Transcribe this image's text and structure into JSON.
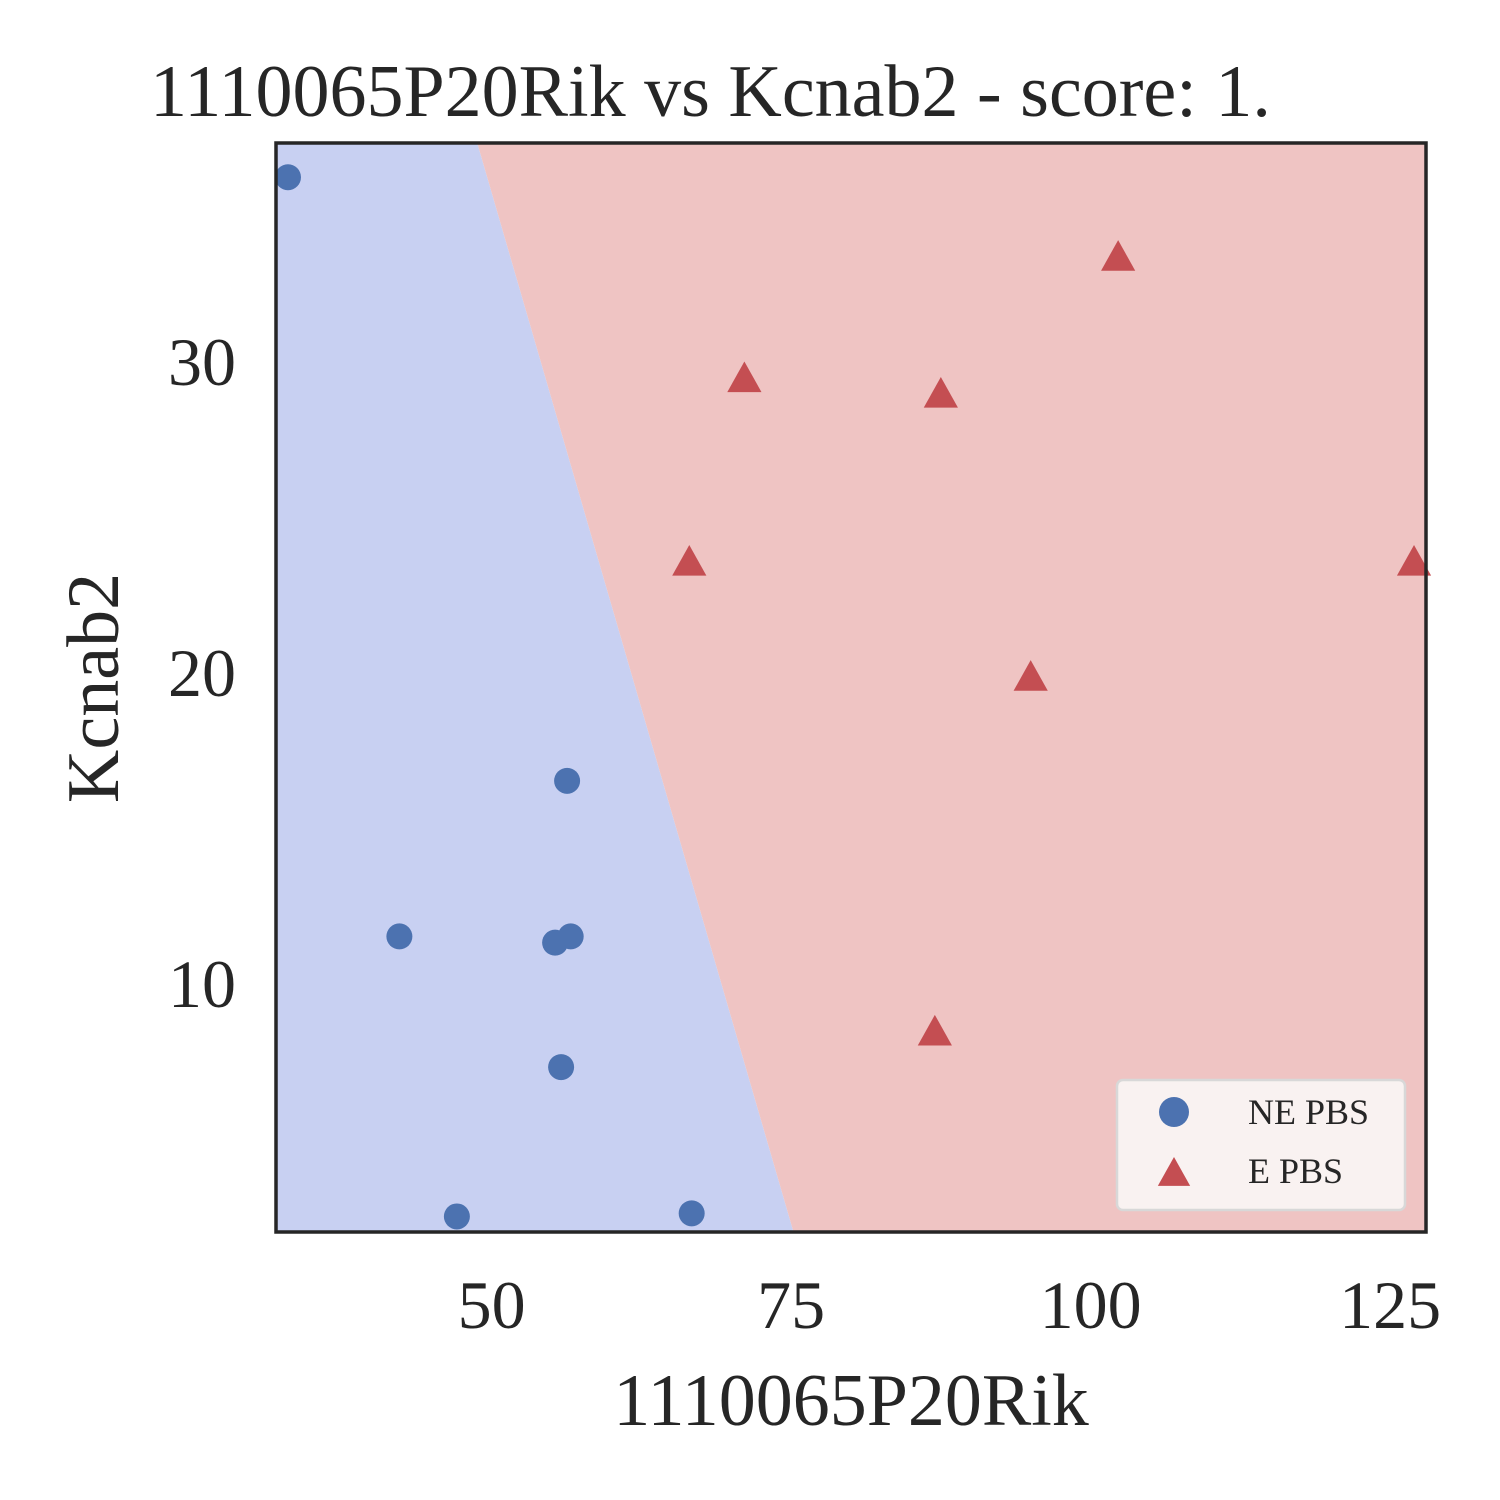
{
  "chart_data": {
    "type": "scatter",
    "title": "1110065P20Rik vs Kcnab2 - score: 1.",
    "xlabel": "1110065P20Rik",
    "ylabel": "Kcnab2",
    "xlim": [
      32,
      128
    ],
    "ylim": [
      2.0,
      37.0
    ],
    "x_ticks": [
      50,
      75,
      100,
      125
    ],
    "y_ticks": [
      10,
      20,
      30
    ],
    "grid": false,
    "legend_position": "bottom-right",
    "decision_boundary": {
      "points": [
        [
          48.8,
          37.0
        ],
        [
          75.2,
          2.0
        ]
      ],
      "left_region_color": "#c8d0f2",
      "right_region_color": "#efc4c3"
    },
    "series": [
      {
        "name": "NE PBS",
        "marker": "circle",
        "color": "#4c72b0",
        "points": [
          [
            33.0,
            35.9
          ],
          [
            42.3,
            11.5
          ],
          [
            47.1,
            2.5
          ],
          [
            55.3,
            11.3
          ],
          [
            55.8,
            7.3
          ],
          [
            56.3,
            16.5
          ],
          [
            56.6,
            11.5
          ],
          [
            66.7,
            2.6
          ]
        ]
      },
      {
        "name": "E PBS",
        "marker": "triangle",
        "color": "#c44e52",
        "points": [
          [
            66.5,
            23.5
          ],
          [
            71.1,
            29.4
          ],
          [
            87.0,
            8.4
          ],
          [
            87.5,
            28.9
          ],
          [
            95.0,
            19.8
          ],
          [
            102.3,
            33.3
          ],
          [
            127.0,
            23.5
          ]
        ]
      }
    ]
  }
}
